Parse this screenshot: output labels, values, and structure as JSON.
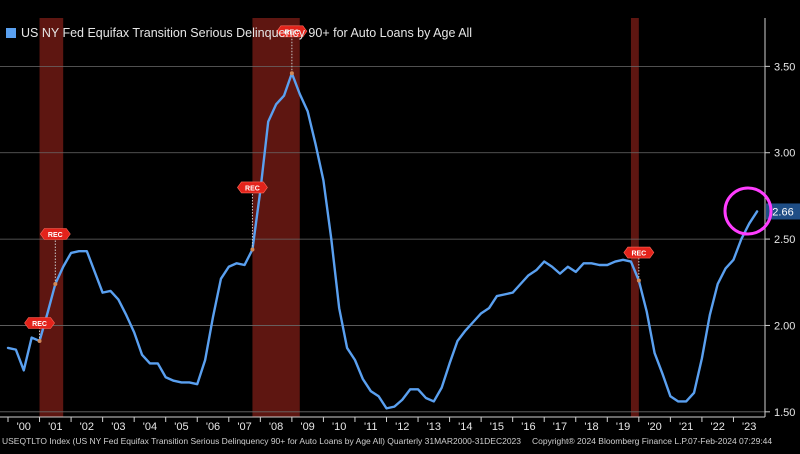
{
  "chart_data": {
    "type": "line",
    "legend_label": "US NY Fed Equifax Transition Serious Delinquency 90+ for Auto Loans by Age All",
    "ylim": [
      1.47,
      3.78
    ],
    "y_ticks": [
      "1.50",
      "2.00",
      "2.50",
      "3.00",
      "3.50"
    ],
    "x_ticks": [
      "'00",
      "'01",
      "'02",
      "'03",
      "'04",
      "'05",
      "'06",
      "'07",
      "'08",
      "'09",
      "'10",
      "'11",
      "'12",
      "'13",
      "'14",
      "'15",
      "'16",
      "'17",
      "'18",
      "'19",
      "'20",
      "'21",
      "'22",
      "'23"
    ],
    "last_value_label": "2.66",
    "recession_label": "REC",
    "recession_bands": [
      {
        "start": 2001.0,
        "end": 2001.75
      },
      {
        "start": 2007.75,
        "end": 2009.25
      },
      {
        "start": 2019.75,
        "end": 2020.0
      }
    ],
    "recession_markers": [
      {
        "x": 2001.0,
        "y": 1.91
      },
      {
        "x": 2001.5,
        "y": 2.24
      },
      {
        "x": 2007.75,
        "y": 2.44
      },
      {
        "x": 2009.0,
        "y": 3.46
      },
      {
        "x": 2020.0,
        "y": 2.26
      }
    ],
    "series": [
      {
        "color": "#5aa0f0",
        "x": [
          2000.0,
          2000.25,
          2000.5,
          2000.75,
          2001.0,
          2001.25,
          2001.5,
          2001.75,
          2002.0,
          2002.25,
          2002.5,
          2002.75,
          2003.0,
          2003.25,
          2003.5,
          2003.75,
          2004.0,
          2004.25,
          2004.5,
          2004.75,
          2005.0,
          2005.25,
          2005.5,
          2005.75,
          2006.0,
          2006.25,
          2006.5,
          2006.75,
          2007.0,
          2007.25,
          2007.5,
          2007.75,
          2008.0,
          2008.25,
          2008.5,
          2008.75,
          2009.0,
          2009.25,
          2009.5,
          2009.75,
          2010.0,
          2010.25,
          2010.5,
          2010.75,
          2011.0,
          2011.25,
          2011.5,
          2011.75,
          2012.0,
          2012.25,
          2012.5,
          2012.75,
          2013.0,
          2013.25,
          2013.5,
          2013.75,
          2014.0,
          2014.25,
          2014.5,
          2014.75,
          2015.0,
          2015.25,
          2015.5,
          2015.75,
          2016.0,
          2016.25,
          2016.5,
          2016.75,
          2017.0,
          2017.25,
          2017.5,
          2017.75,
          2018.0,
          2018.25,
          2018.5,
          2018.75,
          2019.0,
          2019.25,
          2019.5,
          2019.75,
          2020.0,
          2020.25,
          2020.5,
          2020.75,
          2021.0,
          2021.25,
          2021.5,
          2021.75,
          2022.0,
          2022.25,
          2022.5,
          2022.75,
          2023.0,
          2023.25,
          2023.5,
          2023.75
        ],
        "y": [
          1.87,
          1.86,
          1.74,
          1.93,
          1.91,
          2.07,
          2.24,
          2.34,
          2.42,
          2.43,
          2.43,
          2.31,
          2.19,
          2.2,
          2.15,
          2.06,
          1.96,
          1.83,
          1.78,
          1.78,
          1.7,
          1.68,
          1.67,
          1.67,
          1.66,
          1.8,
          2.05,
          2.27,
          2.34,
          2.36,
          2.35,
          2.44,
          2.78,
          3.18,
          3.28,
          3.33,
          3.46,
          3.34,
          3.24,
          3.05,
          2.84,
          2.5,
          2.1,
          1.87,
          1.8,
          1.69,
          1.62,
          1.59,
          1.52,
          1.53,
          1.57,
          1.63,
          1.63,
          1.58,
          1.56,
          1.64,
          1.78,
          1.91,
          1.97,
          2.02,
          2.07,
          2.1,
          2.17,
          2.18,
          2.19,
          2.24,
          2.29,
          2.32,
          2.37,
          2.34,
          2.3,
          2.34,
          2.31,
          2.36,
          2.36,
          2.35,
          2.35,
          2.37,
          2.38,
          2.37,
          2.26,
          2.08,
          1.84,
          1.72,
          1.59,
          1.56,
          1.56,
          1.61,
          1.81,
          2.06,
          2.24,
          2.33,
          2.38,
          2.5,
          2.59,
          2.66
        ]
      }
    ]
  },
  "footer": {
    "ticker_text": "USEQTLTO Index (US NY Fed Equifax Transition Serious Delinquency 90+ for Auto Loans by Age All)  Quarterly 31MAR2000-31DEC2023",
    "copyright": "Copyright® 2024 Bloomberg Finance L.P.",
    "timestamp": "07-Feb-2024 07:29:44"
  }
}
